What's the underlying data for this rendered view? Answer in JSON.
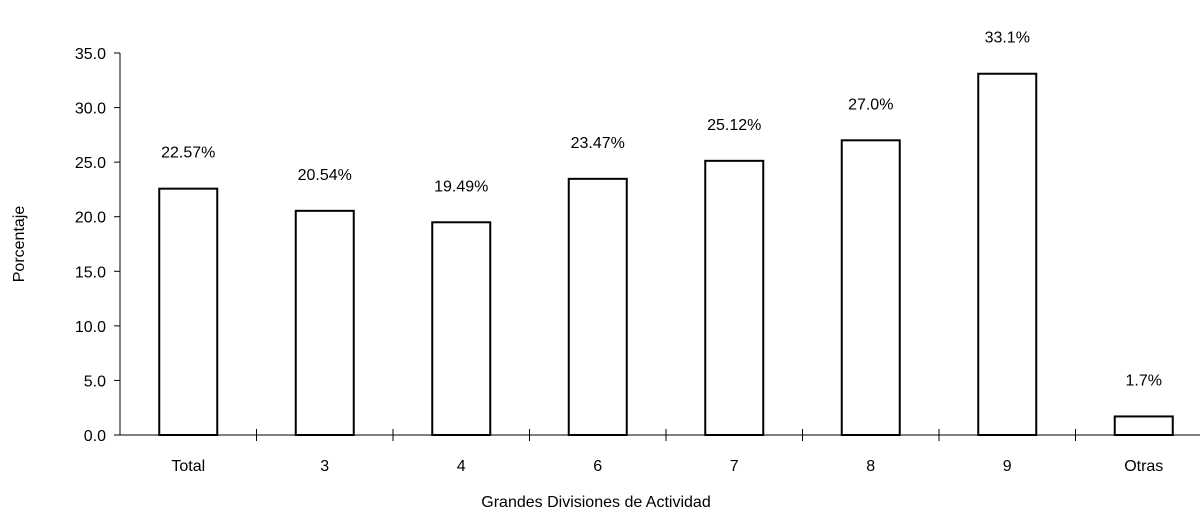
{
  "chart_data": {
    "type": "bar",
    "title": "",
    "xlabel": "Grandes Divisiones de Actividad",
    "ylabel": "Porcentaje",
    "ylim": [
      0,
      35
    ],
    "yticks": [
      0,
      5,
      10,
      15,
      20,
      25,
      30,
      35
    ],
    "ytick_labels": [
      "0.0",
      "5.0",
      "10.0",
      "15.0",
      "20.0",
      "25.0",
      "30.0",
      "35.0"
    ],
    "categories": [
      "Total",
      "3",
      "4",
      "6",
      "7",
      "8",
      "9",
      "Otras"
    ],
    "values": [
      22.57,
      20.54,
      19.49,
      23.47,
      25.12,
      27.0,
      33.1,
      1.7
    ],
    "data_labels": [
      "22.57%",
      "20.54%",
      "19.49%",
      "23.47%",
      "25.12%",
      "27.0%",
      "33.1%",
      "1.7%"
    ],
    "grid": false,
    "legend": "none",
    "bar_fill": "#ffffff",
    "bar_stroke": "#000000"
  }
}
